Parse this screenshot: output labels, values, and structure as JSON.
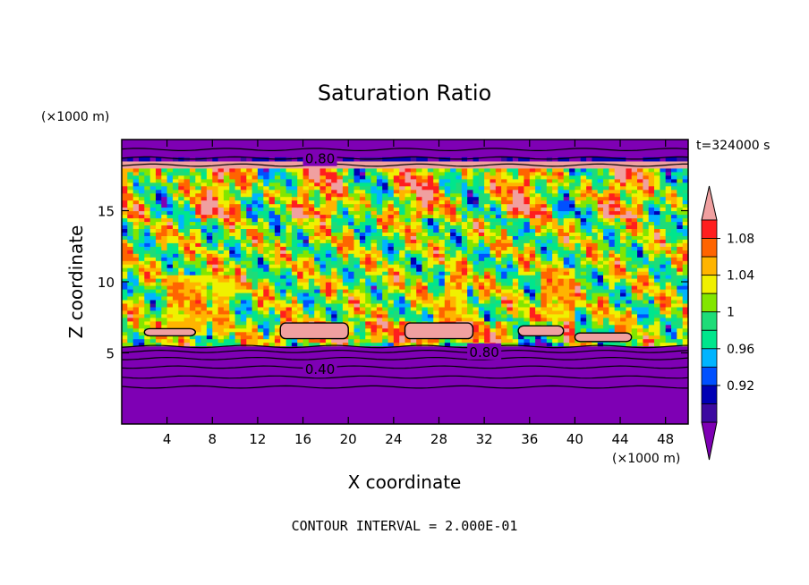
{
  "chart_data": {
    "type": "heatmap",
    "title": "Saturation Ratio",
    "time_label": "t=324000 s",
    "xlabel": "X coordinate",
    "ylabel": "Z coordinate",
    "x_unit": "(×1000 m)",
    "y_unit": "(×1000 m)",
    "xlim": [
      0,
      50
    ],
    "ylim": [
      0,
      20
    ],
    "x_ticks": [
      4,
      8,
      12,
      16,
      20,
      24,
      28,
      32,
      36,
      40,
      44,
      48
    ],
    "y_ticks": [
      5,
      10,
      15
    ],
    "footer": "CONTOUR INTERVAL = 2.000E-01",
    "contour_labels": [
      {
        "text": "0.80",
        "x": 17.5,
        "y": 18.7
      },
      {
        "text": "0.80",
        "x": 32,
        "y": 5.1
      },
      {
        "text": "0.40",
        "x": 17.5,
        "y": 3.9
      }
    ],
    "colorbar": {
      "colors": [
        "#7e00b4",
        "#3c0aa0",
        "#0000b4",
        "#0050ff",
        "#00b4ff",
        "#00e68c",
        "#1edc78",
        "#82e600",
        "#f0f000",
        "#ffb400",
        "#ff6400",
        "#ff1e1e",
        "#f0a0a0"
      ],
      "labels": [
        "0.92",
        "0.96",
        "1",
        "1.04",
        "1.08"
      ],
      "extend": "both"
    }
  }
}
